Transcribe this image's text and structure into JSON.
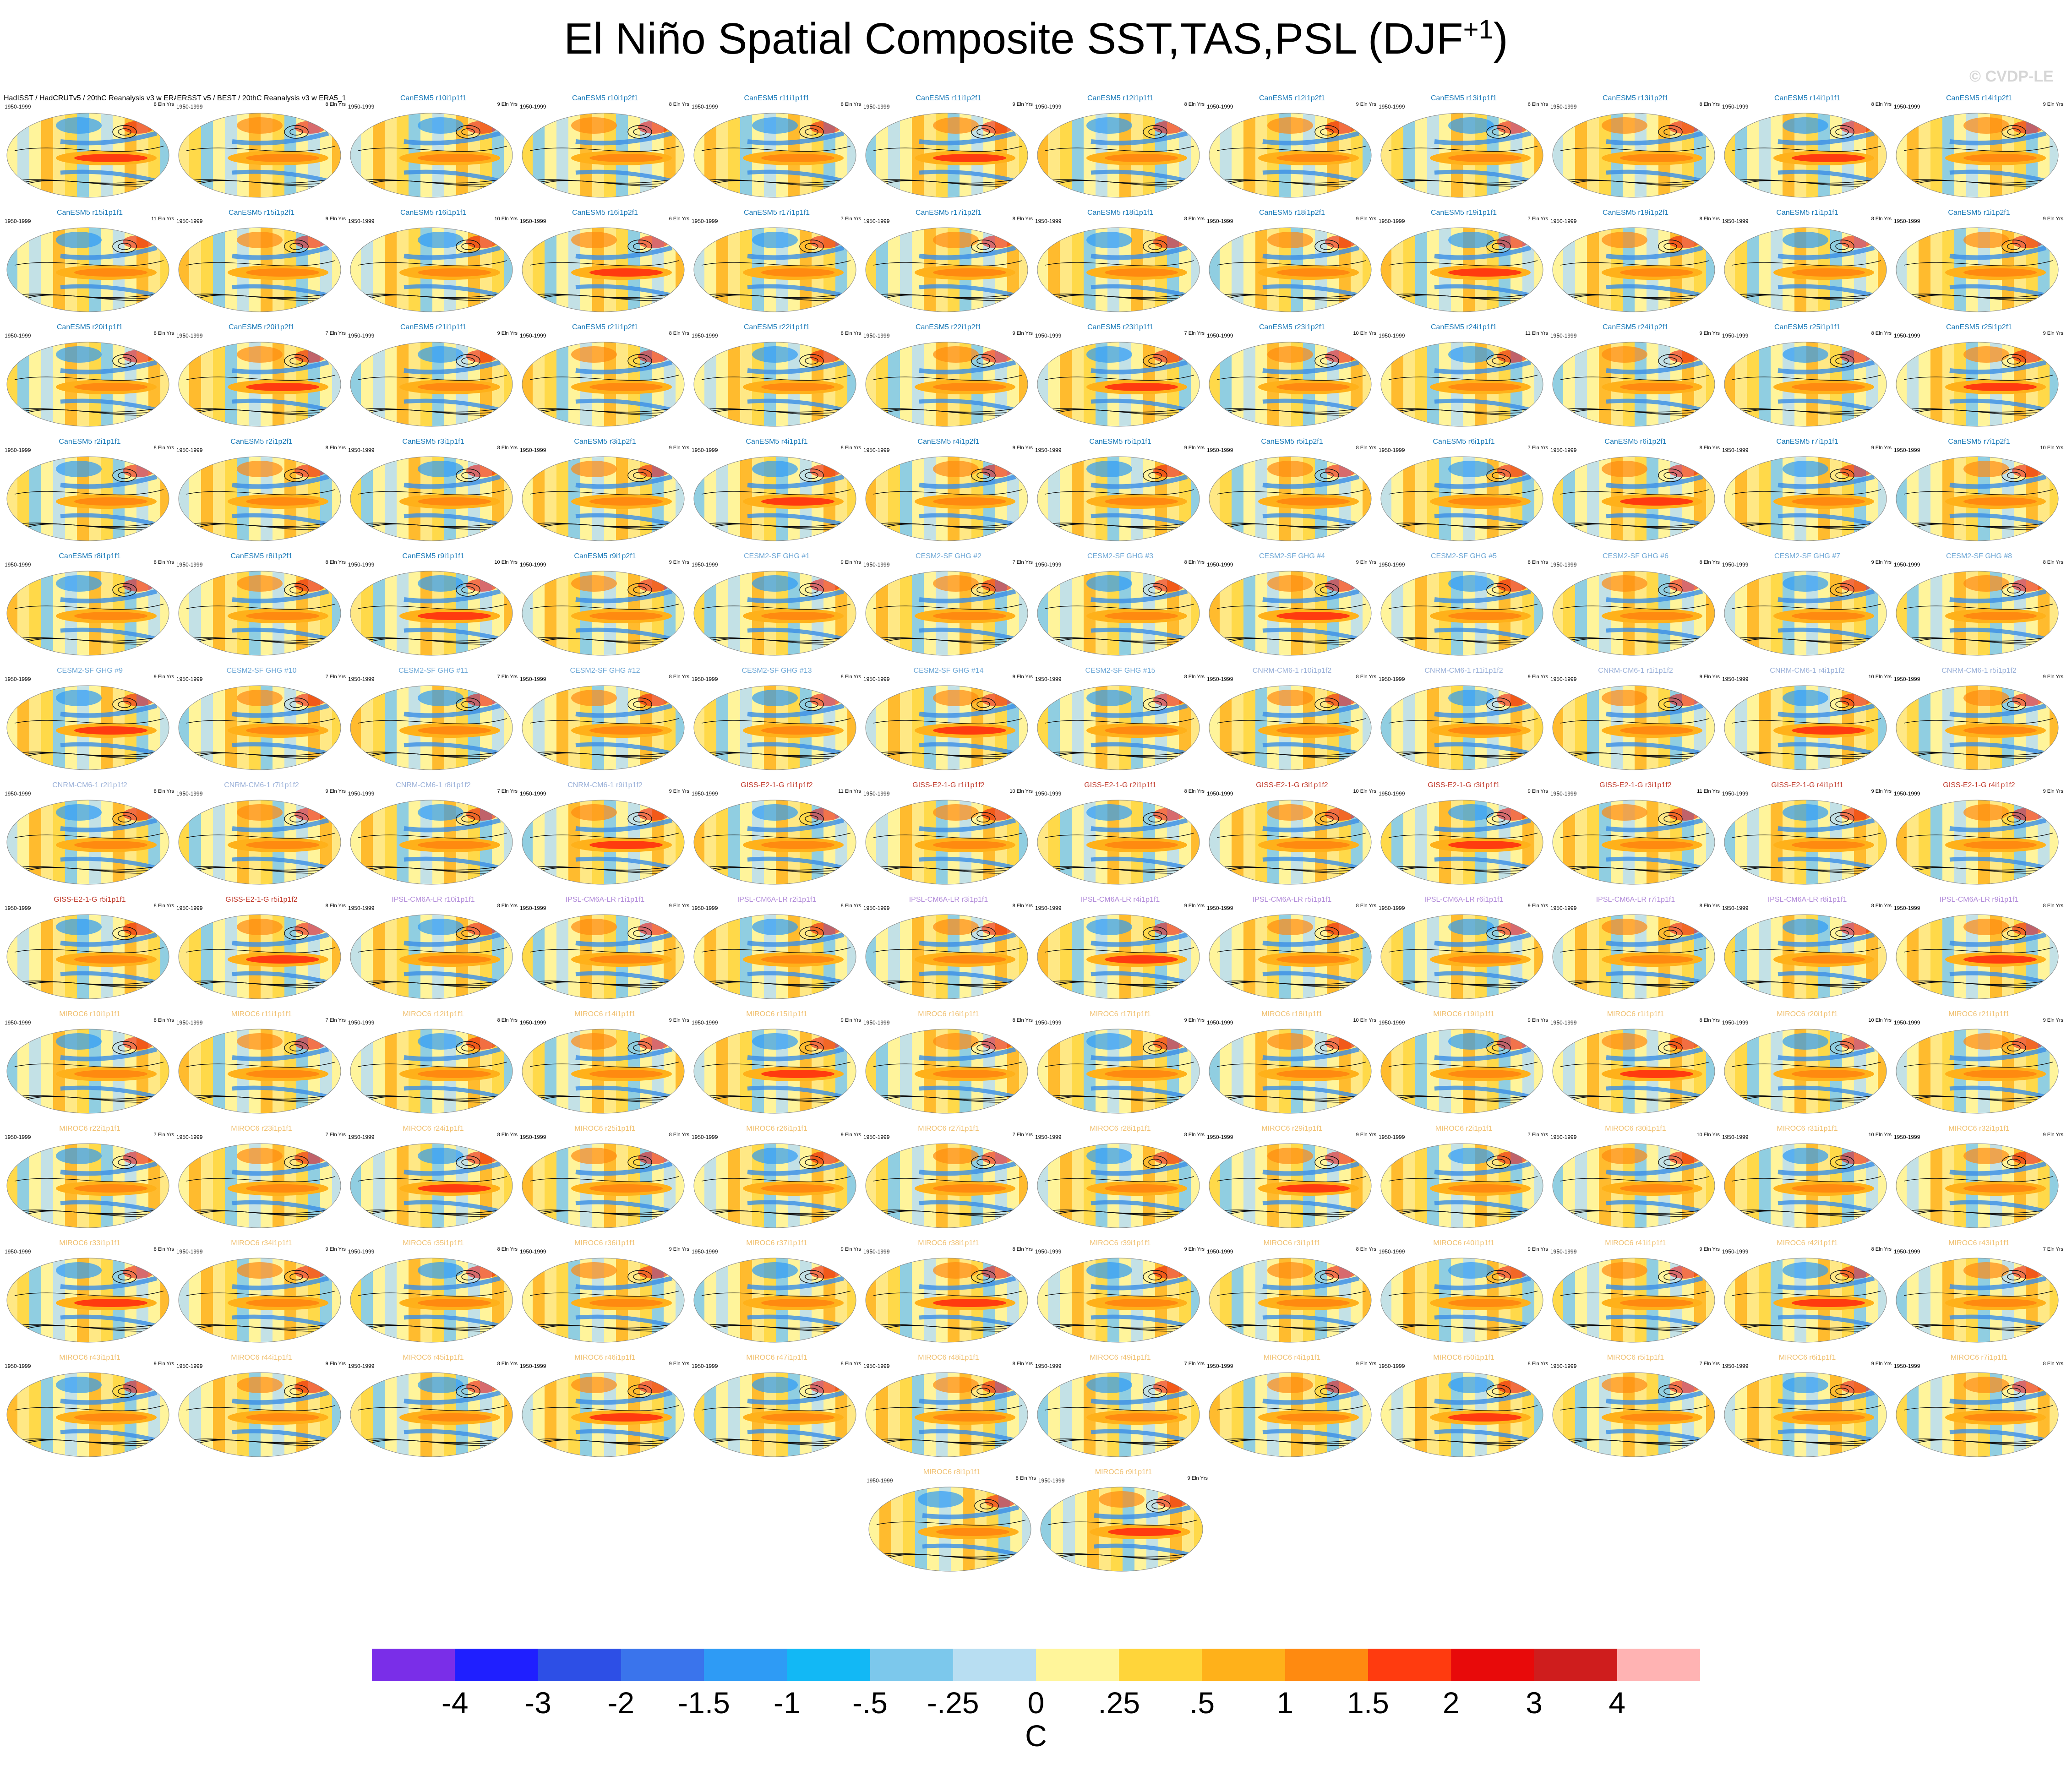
{
  "title_main": "El Niño Spatial Composite SST,TAS,PSL (DJF",
  "title_sup": "+1",
  "title_close": ")",
  "watermark": "© CVDP-LE",
  "panel_period": "1950-1999",
  "colors": {
    "obs_title": "#000000",
    "CanESM5": "#1a7ab8",
    "CESM2-SF": "#6fa8d6",
    "CNRM-CM6-1": "#9ab0d8",
    "GISS-E2-1-G": "#c0392b",
    "IPSL-CM6A-LR": "#b18ad9",
    "MIROC6": "#f0c070"
  },
  "panels": [
    {
      "title": "HadISST / HadCRUTv5 / 20thC Reanalysis v3 w ERA5",
      "group": "obs_title",
      "count": "8 Eln Yrs"
    },
    {
      "title": "ERSST v5 / BEST / 20thC Reanalysis v3 w ERA5_1",
      "group": "obs_title",
      "count": "8 Eln Yrs"
    },
    {
      "title": "CanESM5 r10i1p1f1",
      "group": "CanESM5",
      "count": "9 Eln Yrs"
    },
    {
      "title": "CanESM5 r10i1p2f1",
      "group": "CanESM5",
      "count": "8 Eln Yrs"
    },
    {
      "title": "CanESM5 r11i1p1f1",
      "group": "CanESM5",
      "count": "8 Eln Yrs"
    },
    {
      "title": "CanESM5 r11i1p2f1",
      "group": "CanESM5",
      "count": "9 Eln Yrs"
    },
    {
      "title": "CanESM5 r12i1p1f1",
      "group": "CanESM5",
      "count": "8 Eln Yrs"
    },
    {
      "title": "CanESM5 r12i1p2f1",
      "group": "CanESM5",
      "count": "9 Eln Yrs"
    },
    {
      "title": "CanESM5 r13i1p1f1",
      "group": "CanESM5",
      "count": "6 Eln Yrs"
    },
    {
      "title": "CanESM5 r13i1p2f1",
      "group": "CanESM5",
      "count": "8 Eln Yrs"
    },
    {
      "title": "CanESM5 r14i1p1f1",
      "group": "CanESM5",
      "count": "8 Eln Yrs"
    },
    {
      "title": "CanESM5 r14i1p2f1",
      "group": "CanESM5",
      "count": "9 Eln Yrs"
    },
    {
      "title": "CanESM5 r15i1p1f1",
      "group": "CanESM5",
      "count": "11 Eln Yrs"
    },
    {
      "title": "CanESM5 r15i1p2f1",
      "group": "CanESM5",
      "count": "9 Eln Yrs"
    },
    {
      "title": "CanESM5 r16i1p1f1",
      "group": "CanESM5",
      "count": "10 Eln Yrs"
    },
    {
      "title": "CanESM5 r16i1p2f1",
      "group": "CanESM5",
      "count": "6 Eln Yrs"
    },
    {
      "title": "CanESM5 r17i1p1f1",
      "group": "CanESM5",
      "count": "7 Eln Yrs"
    },
    {
      "title": "CanESM5 r17i1p2f1",
      "group": "CanESM5",
      "count": "8 Eln Yrs"
    },
    {
      "title": "CanESM5 r18i1p1f1",
      "group": "CanESM5",
      "count": "8 Eln Yrs"
    },
    {
      "title": "CanESM5 r18i1p2f1",
      "group": "CanESM5",
      "count": "9 Eln Yrs"
    },
    {
      "title": "CanESM5 r19i1p1f1",
      "group": "CanESM5",
      "count": "7 Eln Yrs"
    },
    {
      "title": "CanESM5 r19i1p2f1",
      "group": "CanESM5",
      "count": "8 Eln Yrs"
    },
    {
      "title": "CanESM5 r1i1p1f1",
      "group": "CanESM5",
      "count": "8 Eln Yrs"
    },
    {
      "title": "CanESM5 r1i1p2f1",
      "group": "CanESM5",
      "count": "9 Eln Yrs"
    },
    {
      "title": "CanESM5 r20i1p1f1",
      "group": "CanESM5",
      "count": "8 Eln Yrs"
    },
    {
      "title": "CanESM5 r20i1p2f1",
      "group": "CanESM5",
      "count": "7 Eln Yrs"
    },
    {
      "title": "CanESM5 r21i1p1f1",
      "group": "CanESM5",
      "count": "9 Eln Yrs"
    },
    {
      "title": "CanESM5 r21i1p2f1",
      "group": "CanESM5",
      "count": "8 Eln Yrs"
    },
    {
      "title": "CanESM5 r22i1p1f1",
      "group": "CanESM5",
      "count": "8 Eln Yrs"
    },
    {
      "title": "CanESM5 r22i1p2f1",
      "group": "CanESM5",
      "count": "9 Eln Yrs"
    },
    {
      "title": "CanESM5 r23i1p1f1",
      "group": "CanESM5",
      "count": "7 Eln Yrs"
    },
    {
      "title": "CanESM5 r23i1p2f1",
      "group": "CanESM5",
      "count": "10 Eln Yrs"
    },
    {
      "title": "CanESM5 r24i1p1f1",
      "group": "CanESM5",
      "count": "11 Eln Yrs"
    },
    {
      "title": "CanESM5 r24i1p2f1",
      "group": "CanESM5",
      "count": "9 Eln Yrs"
    },
    {
      "title": "CanESM5 r25i1p1f1",
      "group": "CanESM5",
      "count": "8 Eln Yrs"
    },
    {
      "title": "CanESM5 r25i1p2f1",
      "group": "CanESM5",
      "count": "9 Eln Yrs"
    },
    {
      "title": "CanESM5 r2i1p1f1",
      "group": "CanESM5",
      "count": "8 Eln Yrs"
    },
    {
      "title": "CanESM5 r2i1p2f1",
      "group": "CanESM5",
      "count": "8 Eln Yrs"
    },
    {
      "title": "CanESM5 r3i1p1f1",
      "group": "CanESM5",
      "count": "8 Eln Yrs"
    },
    {
      "title": "CanESM5 r3i1p2f1",
      "group": "CanESM5",
      "count": "9 Eln Yrs"
    },
    {
      "title": "CanESM5 r4i1p1f1",
      "group": "CanESM5",
      "count": "8 Eln Yrs"
    },
    {
      "title": "CanESM5 r4i1p2f1",
      "group": "CanESM5",
      "count": "9 Eln Yrs"
    },
    {
      "title": "CanESM5 r5i1p1f1",
      "group": "CanESM5",
      "count": "9 Eln Yrs"
    },
    {
      "title": "CanESM5 r5i1p2f1",
      "group": "CanESM5",
      "count": "8 Eln Yrs"
    },
    {
      "title": "CanESM5 r6i1p1f1",
      "group": "CanESM5",
      "count": "7 Eln Yrs"
    },
    {
      "title": "CanESM5 r6i1p2f1",
      "group": "CanESM5",
      "count": "8 Eln Yrs"
    },
    {
      "title": "CanESM5 r7i1p1f1",
      "group": "CanESM5",
      "count": "9 Eln Yrs"
    },
    {
      "title": "CanESM5 r7i1p2f1",
      "group": "CanESM5",
      "count": "10 Eln Yrs"
    },
    {
      "title": "CanESM5 r8i1p1f1",
      "group": "CanESM5",
      "count": "8 Eln Yrs"
    },
    {
      "title": "CanESM5 r8i1p2f1",
      "group": "CanESM5",
      "count": "8 Eln Yrs"
    },
    {
      "title": "CanESM5 r9i1p1f1",
      "group": "CanESM5",
      "count": "10 Eln Yrs"
    },
    {
      "title": "CanESM5 r9i1p2f1",
      "group": "CanESM5",
      "count": "9 Eln Yrs"
    },
    {
      "title": "CESM2-SF GHG #1",
      "group": "CESM2-SF",
      "count": "9 Eln Yrs"
    },
    {
      "title": "CESM2-SF GHG #2",
      "group": "CESM2-SF",
      "count": "7 Eln Yrs"
    },
    {
      "title": "CESM2-SF GHG #3",
      "group": "CESM2-SF",
      "count": "8 Eln Yrs"
    },
    {
      "title": "CESM2-SF GHG #4",
      "group": "CESM2-SF",
      "count": "9 Eln Yrs"
    },
    {
      "title": "CESM2-SF GHG #5",
      "group": "CESM2-SF",
      "count": "8 Eln Yrs"
    },
    {
      "title": "CESM2-SF GHG #6",
      "group": "CESM2-SF",
      "count": "8 Eln Yrs"
    },
    {
      "title": "CESM2-SF GHG #7",
      "group": "CESM2-SF",
      "count": "9 Eln Yrs"
    },
    {
      "title": "CESM2-SF GHG #8",
      "group": "CESM2-SF",
      "count": "8 Eln Yrs"
    },
    {
      "title": "CESM2-SF GHG #9",
      "group": "CESM2-SF",
      "count": "9 Eln Yrs"
    },
    {
      "title": "CESM2-SF GHG #10",
      "group": "CESM2-SF",
      "count": "7 Eln Yrs"
    },
    {
      "title": "CESM2-SF GHG #11",
      "group": "CESM2-SF",
      "count": "7 Eln Yrs"
    },
    {
      "title": "CESM2-SF GHG #12",
      "group": "CESM2-SF",
      "count": "8 Eln Yrs"
    },
    {
      "title": "CESM2-SF GHG #13",
      "group": "CESM2-SF",
      "count": "8 Eln Yrs"
    },
    {
      "title": "CESM2-SF GHG #14",
      "group": "CESM2-SF",
      "count": "9 Eln Yrs"
    },
    {
      "title": "CESM2-SF GHG #15",
      "group": "CESM2-SF",
      "count": "8 Eln Yrs"
    },
    {
      "title": "CNRM-CM6-1 r10i1p1f2",
      "group": "CNRM-CM6-1",
      "count": "8 Eln Yrs"
    },
    {
      "title": "CNRM-CM6-1 r11i1p1f2",
      "group": "CNRM-CM6-1",
      "count": "9 Eln Yrs"
    },
    {
      "title": "CNRM-CM6-1 r1i1p1f2",
      "group": "CNRM-CM6-1",
      "count": "9 Eln Yrs"
    },
    {
      "title": "CNRM-CM6-1 r4i1p1f2",
      "group": "CNRM-CM6-1",
      "count": "10 Eln Yrs"
    },
    {
      "title": "CNRM-CM6-1 r5i1p1f2",
      "group": "CNRM-CM6-1",
      "count": "9 Eln Yrs"
    },
    {
      "title": "CNRM-CM6-1 r2i1p1f2",
      "group": "CNRM-CM6-1",
      "count": "8 Eln Yrs"
    },
    {
      "title": "CNRM-CM6-1 r7i1p1f2",
      "group": "CNRM-CM6-1",
      "count": "9 Eln Yrs"
    },
    {
      "title": "CNRM-CM6-1 r8i1p1f2",
      "group": "CNRM-CM6-1",
      "count": "7 Eln Yrs"
    },
    {
      "title": "CNRM-CM6-1 r9i1p1f2",
      "group": "CNRM-CM6-1",
      "count": "9 Eln Yrs"
    },
    {
      "title": "GISS-E2-1-G r1i1p1f2",
      "group": "GISS-E2-1-G",
      "count": "11 Eln Yrs"
    },
    {
      "title": "GISS-E2-1-G r1i1p1f2",
      "group": "GISS-E2-1-G",
      "count": "10 Eln Yrs"
    },
    {
      "title": "GISS-E2-1-G r2i1p1f1",
      "group": "GISS-E2-1-G",
      "count": "8 Eln Yrs"
    },
    {
      "title": "GISS-E2-1-G r3i1p1f2",
      "group": "GISS-E2-1-G",
      "count": "10 Eln Yrs"
    },
    {
      "title": "GISS-E2-1-G r3i1p1f1",
      "group": "GISS-E2-1-G",
      "count": "9 Eln Yrs"
    },
    {
      "title": "GISS-E2-1-G r3i1p1f2",
      "group": "GISS-E2-1-G",
      "count": "11 Eln Yrs"
    },
    {
      "title": "GISS-E2-1-G r4i1p1f1",
      "group": "GISS-E2-1-G",
      "count": "9 Eln Yrs"
    },
    {
      "title": "GISS-E2-1-G r4i1p1f2",
      "group": "GISS-E2-1-G",
      "count": "9 Eln Yrs"
    },
    {
      "title": "GISS-E2-1-G r5i1p1f1",
      "group": "GISS-E2-1-G",
      "count": "8 Eln Yrs"
    },
    {
      "title": "GISS-E2-1-G r5i1p1f2",
      "group": "GISS-E2-1-G",
      "count": "8 Eln Yrs"
    },
    {
      "title": "IPSL-CM6A-LR r10i1p1f1",
      "group": "IPSL-CM6A-LR",
      "count": "8 Eln Yrs"
    },
    {
      "title": "IPSL-CM6A-LR r1i1p1f1",
      "group": "IPSL-CM6A-LR",
      "count": "9 Eln Yrs"
    },
    {
      "title": "IPSL-CM6A-LR r2i1p1f1",
      "group": "IPSL-CM6A-LR",
      "count": "8 Eln Yrs"
    },
    {
      "title": "IPSL-CM6A-LR r3i1p1f1",
      "group": "IPSL-CM6A-LR",
      "count": "8 Eln Yrs"
    },
    {
      "title": "IPSL-CM6A-LR r4i1p1f1",
      "group": "IPSL-CM6A-LR",
      "count": "9 Eln Yrs"
    },
    {
      "title": "IPSL-CM6A-LR r5i1p1f1",
      "group": "IPSL-CM6A-LR",
      "count": "8 Eln Yrs"
    },
    {
      "title": "IPSL-CM6A-LR r6i1p1f1",
      "group": "IPSL-CM6A-LR",
      "count": "9 Eln Yrs"
    },
    {
      "title": "IPSL-CM6A-LR r7i1p1f1",
      "group": "IPSL-CM6A-LR",
      "count": "8 Eln Yrs"
    },
    {
      "title": "IPSL-CM6A-LR r8i1p1f1",
      "group": "IPSL-CM6A-LR",
      "count": "8 Eln Yrs"
    },
    {
      "title": "IPSL-CM6A-LR r9i1p1f1",
      "group": "IPSL-CM6A-LR",
      "count": "8 Eln Yrs"
    },
    {
      "title": "MIROC6 r10i1p1f1",
      "group": "MIROC6",
      "count": "8 Eln Yrs"
    },
    {
      "title": "MIROC6 r11i1p1f1",
      "group": "MIROC6",
      "count": "7 Eln Yrs"
    },
    {
      "title": "MIROC6 r12i1p1f1",
      "group": "MIROC6",
      "count": "8 Eln Yrs"
    },
    {
      "title": "MIROC6 r14i1p1f1",
      "group": "MIROC6",
      "count": "9 Eln Yrs"
    },
    {
      "title": "MIROC6 r15i1p1f1",
      "group": "MIROC6",
      "count": "9 Eln Yrs"
    },
    {
      "title": "MIROC6 r16i1p1f1",
      "group": "MIROC6",
      "count": "8 Eln Yrs"
    },
    {
      "title": "MIROC6 r17i1p1f1",
      "group": "MIROC6",
      "count": "9 Eln Yrs"
    },
    {
      "title": "MIROC6 r18i1p1f1",
      "group": "MIROC6",
      "count": "10 Eln Yrs"
    },
    {
      "title": "MIROC6 r19i1p1f1",
      "group": "MIROC6",
      "count": "9 Eln Yrs"
    },
    {
      "title": "MIROC6 r1i1p1f1",
      "group": "MIROC6",
      "count": "8 Eln Yrs"
    },
    {
      "title": "MIROC6 r20i1p1f1",
      "group": "MIROC6",
      "count": "10 Eln Yrs"
    },
    {
      "title": "MIROC6 r21i1p1f1",
      "group": "MIROC6",
      "count": "9 Eln Yrs"
    },
    {
      "title": "MIROC6 r22i1p1f1",
      "group": "MIROC6",
      "count": "7 Eln Yrs"
    },
    {
      "title": "MIROC6 r23i1p1f1",
      "group": "MIROC6",
      "count": "7 Eln Yrs"
    },
    {
      "title": "MIROC6 r24i1p1f1",
      "group": "MIROC6",
      "count": "8 Eln Yrs"
    },
    {
      "title": "MIROC6 r25i1p1f1",
      "group": "MIROC6",
      "count": "8 Eln Yrs"
    },
    {
      "title": "MIROC6 r26i1p1f1",
      "group": "MIROC6",
      "count": "9 Eln Yrs"
    },
    {
      "title": "MIROC6 r27i1p1f1",
      "group": "MIROC6",
      "count": "7 Eln Yrs"
    },
    {
      "title": "MIROC6 r28i1p1f1",
      "group": "MIROC6",
      "count": "8 Eln Yrs"
    },
    {
      "title": "MIROC6 r29i1p1f1",
      "group": "MIROC6",
      "count": "9 Eln Yrs"
    },
    {
      "title": "MIROC6 r2i1p1f1",
      "group": "MIROC6",
      "count": "7 Eln Yrs"
    },
    {
      "title": "MIROC6 r30i1p1f1",
      "group": "MIROC6",
      "count": "10 Eln Yrs"
    },
    {
      "title": "MIROC6 r31i1p1f1",
      "group": "MIROC6",
      "count": "10 Eln Yrs"
    },
    {
      "title": "MIROC6 r32i1p1f1",
      "group": "MIROC6",
      "count": "9 Eln Yrs"
    },
    {
      "title": "MIROC6 r33i1p1f1",
      "group": "MIROC6",
      "count": "8 Eln Yrs"
    },
    {
      "title": "MIROC6 r34i1p1f1",
      "group": "MIROC6",
      "count": "9 Eln Yrs"
    },
    {
      "title": "MIROC6 r35i1p1f1",
      "group": "MIROC6",
      "count": "8 Eln Yrs"
    },
    {
      "title": "MIROC6 r36i1p1f1",
      "group": "MIROC6",
      "count": "9 Eln Yrs"
    },
    {
      "title": "MIROC6 r37i1p1f1",
      "group": "MIROC6",
      "count": "9 Eln Yrs"
    },
    {
      "title": "MIROC6 r38i1p1f1",
      "group": "MIROC6",
      "count": "8 Eln Yrs"
    },
    {
      "title": "MIROC6 r39i1p1f1",
      "group": "MIROC6",
      "count": "9 Eln Yrs"
    },
    {
      "title": "MIROC6 r3i1p1f1",
      "group": "MIROC6",
      "count": "8 Eln Yrs"
    },
    {
      "title": "MIROC6 r40i1p1f1",
      "group": "MIROC6",
      "count": "9 Eln Yrs"
    },
    {
      "title": "MIROC6 r41i1p1f1",
      "group": "MIROC6",
      "count": "9 Eln Yrs"
    },
    {
      "title": "MIROC6 r42i1p1f1",
      "group": "MIROC6",
      "count": "8 Eln Yrs"
    },
    {
      "title": "MIROC6 r43i1p1f1",
      "group": "MIROC6",
      "count": "7 Eln Yrs"
    },
    {
      "title": "MIROC6 r43i1p1f1",
      "group": "MIROC6",
      "count": "9 Eln Yrs"
    },
    {
      "title": "MIROC6 r44i1p1f1",
      "group": "MIROC6",
      "count": "9 Eln Yrs"
    },
    {
      "title": "MIROC6 r45i1p1f1",
      "group": "MIROC6",
      "count": "8 Eln Yrs"
    },
    {
      "title": "MIROC6 r46i1p1f1",
      "group": "MIROC6",
      "count": "9 Eln Yrs"
    },
    {
      "title": "MIROC6 r47i1p1f1",
      "group": "MIROC6",
      "count": "8 Eln Yrs"
    },
    {
      "title": "MIROC6 r48i1p1f1",
      "group": "MIROC6",
      "count": "8 Eln Yrs"
    },
    {
      "title": "MIROC6 r49i1p1f1",
      "group": "MIROC6",
      "count": "7 Eln Yrs"
    },
    {
      "title": "MIROC6 r4i1p1f1",
      "group": "MIROC6",
      "count": "9 Eln Yrs"
    },
    {
      "title": "MIROC6 r50i1p1f1",
      "group": "MIROC6",
      "count": "8 Eln Yrs"
    },
    {
      "title": "MIROC6 r5i1p1f1",
      "group": "MIROC6",
      "count": "7 Eln Yrs"
    },
    {
      "title": "MIROC6 r6i1p1f1",
      "group": "MIROC6",
      "count": "9 Eln Yrs"
    },
    {
      "title": "MIROC6 r7i1p1f1",
      "group": "MIROC6",
      "count": "8 Eln Yrs"
    },
    {
      "title": "MIROC6 r8i1p1f1",
      "group": "MIROC6",
      "count": "8 Eln Yrs"
    },
    {
      "title": "MIROC6 r9i1p1f1",
      "group": "MIROC6",
      "count": "9 Eln Yrs"
    }
  ],
  "chart_data": {
    "type": "heatmap",
    "title": "El Niño Spatial Composite SST,TAS,PSL (DJF+1)",
    "colorbar": {
      "colors": [
        "#7a2ee8",
        "#1f1fff",
        "#2d4fe6",
        "#3a74ec",
        "#2e9bf5",
        "#12b8f5",
        "#7cc8ec",
        "#b8def2",
        "#fff59a",
        "#ffd53a",
        "#ffb11a",
        "#ff8a10",
        "#ff3b0f",
        "#e80a0a",
        "#cf1d1d",
        "#ffb3b3"
      ],
      "tick_labels": [
        "-4",
        "-3",
        "-2",
        "-1.5",
        "-1",
        "-.5",
        "-.25",
        "0",
        ".25",
        ".5",
        "1",
        "1.5",
        "2",
        "3",
        "4"
      ],
      "units": "C"
    }
  }
}
